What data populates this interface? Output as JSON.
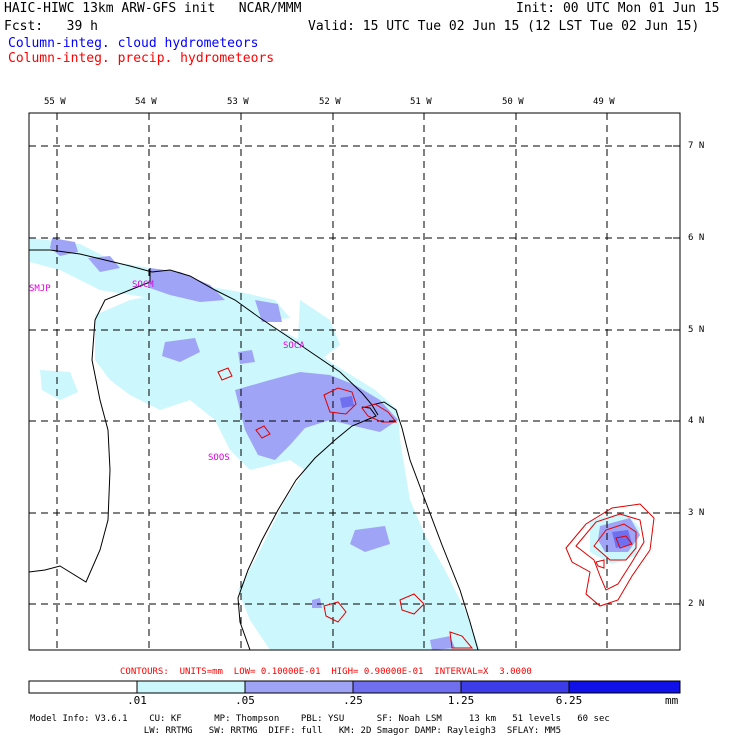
{
  "header": {
    "title_left": "HAIC-HIWC 13km ARW-GFS init   NCAR/MMM",
    "init": "Init: 00 UTC Mon 01 Jun 15",
    "fcst": "Fcst:   39 h",
    "valid": "Valid: 15 UTC Tue 02 Jun 15 (12 LST Tue 02 Jun 15)",
    "field_cloud": "Column-integ. cloud hydrometeors",
    "field_precip": "Column-integ. precip. hydrometeors"
  },
  "colors": {
    "cloud_label": "#0000ff",
    "precip_label": "#ff0000",
    "contour_line": "#e00000",
    "station_label": "#e000e0",
    "fill_1": "#ccf7fc",
    "fill_2": "#9fa4f6",
    "fill_3": "#6f6ff0",
    "fill_4": "#3c3ce8",
    "fill_5": "#1010e8"
  },
  "map": {
    "lon_labels": [
      "55 W",
      "54 W",
      "53 W",
      "52 W",
      "51 W",
      "50 W",
      "49 W"
    ],
    "lat_labels": [
      "7 N",
      "6 N",
      "5 N",
      "4 N",
      "3 N",
      "2 N"
    ],
    "stations": [
      "SMJP",
      "SOCM",
      "SOCA",
      "SOOS"
    ]
  },
  "contours_info": "CONTOURS:  UNITS=mm  LOW= 0.10000E-01  HIGH= 0.90000E-01  INTERVAL=X  3.0000",
  "colorbar": {
    "ticks": [
      ".01",
      ".05",
      ".25",
      "1.25",
      "6.25"
    ],
    "units": "mm"
  },
  "model_info": {
    "line1": "Model Info: V3.6.1    CU: KF      MP: Thompson    PBL: YSU      SF: Noah LSM     13 km   51 levels   60 sec",
    "line2": "                     LW: RRTMG   SW: RRTMG  DIFF: full   KM: 2D Smagor DAMP: Rayleigh3  SFLAY: MM5"
  }
}
